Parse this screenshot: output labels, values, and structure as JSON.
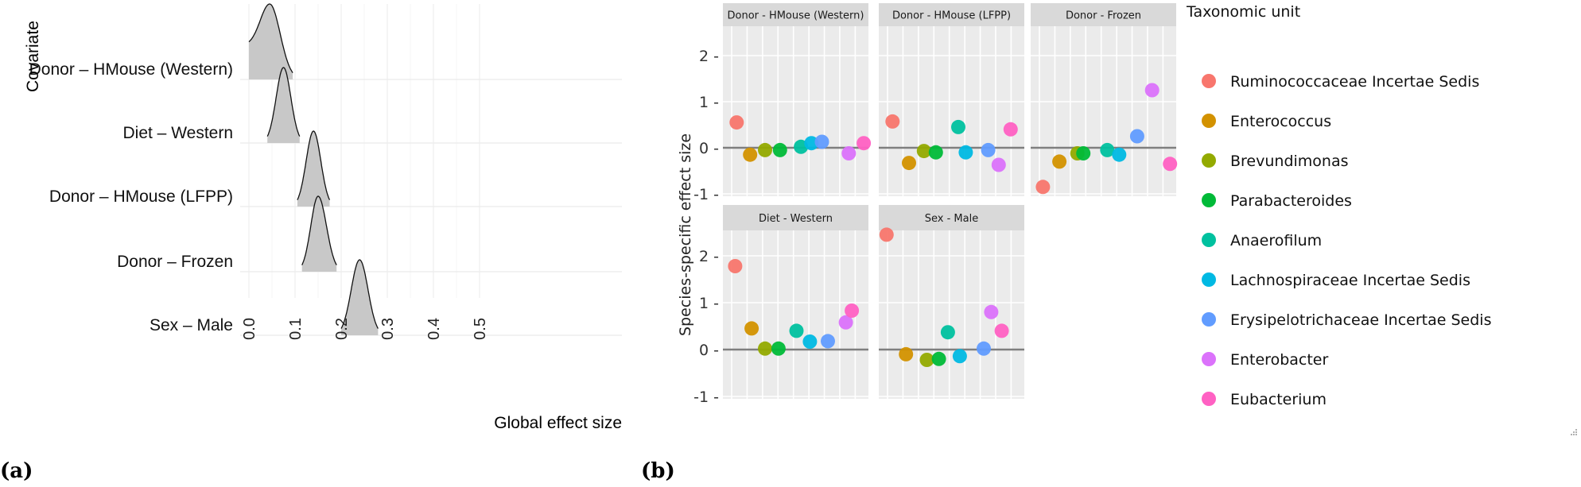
{
  "panel_labels": {
    "a": "(a)",
    "b": "(b)"
  },
  "chart_data": [
    {
      "type": "ridgeline",
      "panel": "a",
      "title": "",
      "xlabel": "Global effect size",
      "ylabel": "Covariate",
      "xlim": [
        0.0,
        0.52
      ],
      "x_ticks": [
        "0.0",
        "0.1",
        "0.2",
        "0.3",
        "0.4",
        "0.5"
      ],
      "x_tick_values": [
        0.0,
        0.1,
        0.2,
        0.3,
        0.4,
        0.5
      ],
      "grid": true,
      "fill_color": "#c8c8c8",
      "series": [
        {
          "name": "Donor – HMouse (Western)",
          "peak": 0.045,
          "min": 0.0,
          "max": 0.095,
          "shape": "skewed-left"
        },
        {
          "name": "Diet – Western",
          "peak": 0.075,
          "min": 0.04,
          "max": 0.11,
          "shape": "normal"
        },
        {
          "name": "Donor – HMouse (LFPP)",
          "peak": 0.14,
          "min": 0.105,
          "max": 0.175,
          "shape": "normal"
        },
        {
          "name": "Donor – Frozen",
          "peak": 0.15,
          "min": 0.115,
          "max": 0.19,
          "shape": "normal"
        },
        {
          "name": "Sex – Male",
          "peak": 0.24,
          "min": 0.2,
          "max": 0.28,
          "shape": "normal"
        }
      ]
    },
    {
      "type": "scatter",
      "panel": "b",
      "title": "",
      "xlabel": "",
      "ylabel": "Species-specific effect size",
      "ylim": [
        -1.05,
        2.6
      ],
      "y_ticks": [
        "2 -",
        "1 -",
        "0 -",
        "-1 -"
      ],
      "y_tick_values": [
        2,
        1,
        0,
        -1
      ],
      "grid": true,
      "legend_title": "Taxonomic unit",
      "legend_position": "right",
      "taxa": [
        {
          "name": "Ruminococcaceae Incertae Sedis",
          "color": "#F8766D"
        },
        {
          "name": "Enterococcus",
          "color": "#D39200"
        },
        {
          "name": "Brevundimonas",
          "color": "#93AA00"
        },
        {
          "name": "Parabacteroides",
          "color": "#00BA38"
        },
        {
          "name": "Anaerofilum",
          "color": "#00C19F"
        },
        {
          "name": "Lachnospiraceae Incertae Sedis",
          "color": "#00B9E3"
        },
        {
          "name": "Erysipelotrichaceae Incertae Sedis",
          "color": "#619CFF"
        },
        {
          "name": "Enterobacter",
          "color": "#DB72FB"
        },
        {
          "name": "Eubacterium",
          "color": "#FF61C3"
        }
      ],
      "facets": [
        {
          "title": "Donor - HMouse (Western)",
          "x": [
            0.6,
            1.5,
            2.5,
            3.5,
            4.9,
            5.6,
            6.3,
            8.1,
            9.1
          ],
          "values": [
            0.55,
            -0.15,
            -0.05,
            -0.05,
            0.02,
            0.1,
            0.13,
            -0.12,
            0.1
          ]
        },
        {
          "title": "Donor - HMouse (LFPP)",
          "x": [
            0.6,
            1.7,
            2.7,
            3.5,
            5.0,
            5.5,
            7.0,
            7.7,
            8.5
          ],
          "values": [
            0.57,
            -0.33,
            -0.07,
            -0.1,
            0.45,
            -0.1,
            -0.05,
            -0.37,
            0.4
          ]
        },
        {
          "title": "Donor - Frozen",
          "x": [
            0.5,
            1.6,
            2.8,
            3.2,
            4.8,
            5.6,
            6.8,
            7.8,
            9.0
          ],
          "values": [
            -0.85,
            -0.3,
            -0.12,
            -0.12,
            -0.05,
            -0.15,
            0.25,
            1.25,
            -0.35
          ]
        },
        {
          "title": "Diet - Western",
          "x": [
            0.5,
            1.6,
            2.5,
            3.4,
            4.6,
            5.5,
            6.7,
            7.9,
            8.3
          ],
          "values": [
            1.78,
            0.45,
            0.02,
            0.02,
            0.4,
            0.17,
            0.18,
            0.58,
            0.83
          ]
        },
        {
          "title": "Sex - Male",
          "x": [
            0.2,
            1.5,
            2.9,
            3.7,
            4.3,
            5.1,
            6.7,
            7.2,
            7.9
          ],
          "values": [
            2.45,
            -0.1,
            -0.22,
            -0.2,
            0.37,
            -0.14,
            0.02,
            0.8,
            0.4
          ]
        }
      ]
    }
  ]
}
